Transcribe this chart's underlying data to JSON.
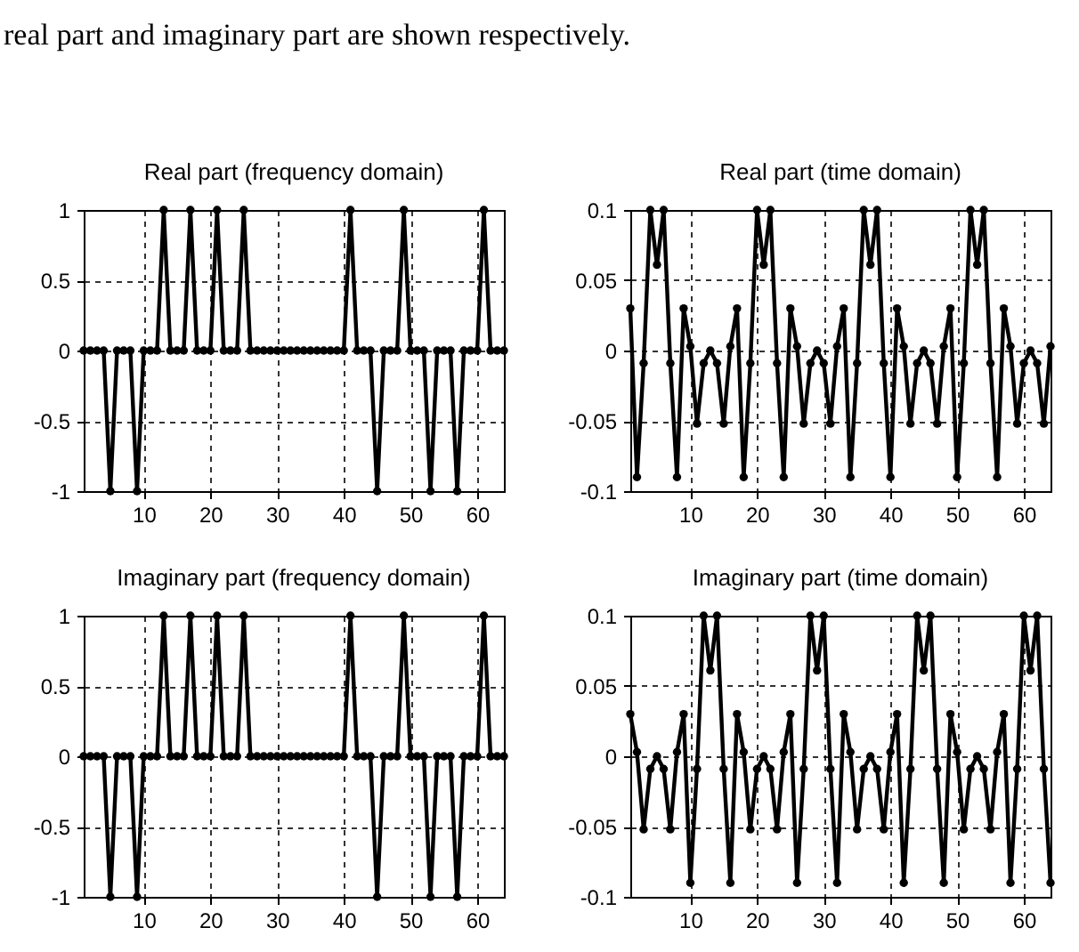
{
  "chart_data": [
    {
      "type": "line",
      "title": "Real part (frequency domain)",
      "annotations": [
        "real part and imaginary part are shown respectively."
      ],
      "x": [
        1,
        2,
        3,
        4,
        5,
        6,
        7,
        8,
        9,
        10,
        11,
        12,
        13,
        14,
        15,
        16,
        17,
        18,
        19,
        20,
        21,
        22,
        23,
        24,
        25,
        26,
        27,
        28,
        29,
        30,
        31,
        32,
        33,
        34,
        35,
        36,
        37,
        38,
        39,
        40,
        41,
        42,
        43,
        44,
        45,
        46,
        47,
        48,
        49,
        50,
        51,
        52,
        53,
        54,
        55,
        56,
        57,
        58,
        59,
        60,
        61,
        62,
        63,
        64
      ],
      "xlim": [
        1,
        64
      ],
      "xticks": [
        10,
        20,
        30,
        40,
        50,
        60
      ],
      "ylim": [
        -1,
        1
      ],
      "yticks": [
        -1,
        -0.5,
        0,
        0.5,
        1
      ],
      "grid": true,
      "marker": "circle",
      "line_style": "solid",
      "series": [
        {
          "color": "#000000",
          "values": [
            0,
            0,
            0,
            0,
            -1,
            0,
            0,
            0,
            -1,
            0,
            0,
            0,
            1,
            0,
            0,
            0,
            1,
            0,
            0,
            0,
            1,
            0,
            0,
            0,
            1,
            0,
            0,
            0,
            0,
            0,
            0,
            0,
            0,
            0,
            0,
            0,
            0,
            0,
            0,
            0,
            1,
            0,
            0,
            0,
            -1,
            0,
            0,
            0,
            1,
            0,
            0,
            0,
            -1,
            0,
            0,
            0,
            -1,
            0,
            0,
            0,
            1,
            0,
            0,
            0
          ]
        }
      ]
    },
    {
      "type": "line",
      "title": "Real part (time domain)",
      "x": [
        1,
        2,
        3,
        4,
        5,
        6,
        7,
        8,
        9,
        10,
        11,
        12,
        13,
        14,
        15,
        16,
        17,
        18,
        19,
        20,
        21,
        22,
        23,
        24,
        25,
        26,
        27,
        28,
        29,
        30,
        31,
        32,
        33,
        34,
        35,
        36,
        37,
        38,
        39,
        40,
        41,
        42,
        43,
        44,
        45,
        46,
        47,
        48,
        49,
        50,
        51,
        52,
        53,
        54,
        55,
        56,
        57,
        58,
        59,
        60,
        61,
        62,
        63,
        64
      ],
      "xlim": [
        1,
        64
      ],
      "xticks": [
        10,
        20,
        30,
        40,
        50,
        60
      ],
      "ylim": [
        -0.1,
        0.1
      ],
      "yticks": [
        -0.1,
        -0.05,
        0,
        0.05,
        0.1
      ],
      "grid": true,
      "marker": "circle",
      "line_style": "solid",
      "series": [
        {
          "color": "#000000",
          "values": [
            0.03,
            -0.09,
            -0.009,
            0.1,
            0.061,
            0.1,
            -0.009,
            -0.09,
            0.03,
            0.003,
            -0.052,
            -0.009,
            0,
            -0.009,
            -0.052,
            0.003,
            0.03,
            -0.09,
            -0.009,
            0.1,
            0.061,
            0.1,
            -0.009,
            -0.09,
            0.03,
            0.003,
            -0.052,
            -0.009,
            0,
            -0.009,
            -0.052,
            0.003,
            0.03,
            -0.09,
            -0.009,
            0.1,
            0.061,
            0.1,
            -0.009,
            -0.09,
            0.03,
            0.003,
            -0.052,
            -0.009,
            0,
            -0.009,
            -0.052,
            0.003,
            0.03,
            -0.09,
            -0.009,
            0.1,
            0.061,
            0.1,
            -0.009,
            -0.09,
            0.03,
            0.003,
            -0.052,
            -0.009,
            0,
            -0.009,
            -0.052,
            0.003
          ]
        }
      ]
    },
    {
      "type": "line",
      "title": "Imaginary part (frequency domain)",
      "x": [
        1,
        2,
        3,
        4,
        5,
        6,
        7,
        8,
        9,
        10,
        11,
        12,
        13,
        14,
        15,
        16,
        17,
        18,
        19,
        20,
        21,
        22,
        23,
        24,
        25,
        26,
        27,
        28,
        29,
        30,
        31,
        32,
        33,
        34,
        35,
        36,
        37,
        38,
        39,
        40,
        41,
        42,
        43,
        44,
        45,
        46,
        47,
        48,
        49,
        50,
        51,
        52,
        53,
        54,
        55,
        56,
        57,
        58,
        59,
        60,
        61,
        62,
        63,
        64
      ],
      "xlim": [
        1,
        64
      ],
      "xticks": [
        10,
        20,
        30,
        40,
        50,
        60
      ],
      "ylim": [
        -1,
        1
      ],
      "yticks": [
        -1,
        -0.5,
        0,
        0.5,
        1
      ],
      "grid": true,
      "marker": "circle",
      "line_style": "solid",
      "series": [
        {
          "color": "#000000",
          "values": [
            0,
            0,
            0,
            0,
            -1,
            0,
            0,
            0,
            -1,
            0,
            0,
            0,
            1,
            0,
            0,
            0,
            1,
            0,
            0,
            0,
            1,
            0,
            0,
            0,
            1,
            0,
            0,
            0,
            0,
            0,
            0,
            0,
            0,
            0,
            0,
            0,
            0,
            0,
            0,
            0,
            1,
            0,
            0,
            0,
            -1,
            0,
            0,
            0,
            1,
            0,
            0,
            0,
            -1,
            0,
            0,
            0,
            -1,
            0,
            0,
            0,
            1,
            0,
            0,
            0
          ]
        }
      ]
    },
    {
      "type": "line",
      "title": "Imaginary part (time domain)",
      "x": [
        1,
        2,
        3,
        4,
        5,
        6,
        7,
        8,
        9,
        10,
        11,
        12,
        13,
        14,
        15,
        16,
        17,
        18,
        19,
        20,
        21,
        22,
        23,
        24,
        25,
        26,
        27,
        28,
        29,
        30,
        31,
        32,
        33,
        34,
        35,
        36,
        37,
        38,
        39,
        40,
        41,
        42,
        43,
        44,
        45,
        46,
        47,
        48,
        49,
        50,
        51,
        52,
        53,
        54,
        55,
        56,
        57,
        58,
        59,
        60,
        61,
        62,
        63,
        64
      ],
      "xlim": [
        1,
        64
      ],
      "xticks": [
        10,
        20,
        30,
        40,
        50,
        60
      ],
      "ylim": [
        -0.1,
        0.1
      ],
      "yticks": [
        -0.1,
        -0.05,
        0,
        0.05,
        0.1
      ],
      "grid": true,
      "marker": "circle",
      "line_style": "solid",
      "series": [
        {
          "color": "#000000",
          "values": [
            0.03,
            0.003,
            -0.052,
            -0.009,
            0,
            -0.009,
            -0.052,
            0.003,
            0.03,
            -0.09,
            -0.009,
            0.1,
            0.061,
            0.1,
            -0.009,
            -0.09,
            0.03,
            0.003,
            -0.052,
            -0.009,
            0,
            -0.009,
            -0.052,
            0.003,
            0.03,
            -0.09,
            -0.009,
            0.1,
            0.061,
            0.1,
            -0.009,
            -0.09,
            0.03,
            0.003,
            -0.052,
            -0.009,
            0,
            -0.009,
            -0.052,
            0.003,
            0.03,
            -0.09,
            -0.009,
            0.1,
            0.061,
            0.1,
            -0.009,
            -0.09,
            0.03,
            0.003,
            -0.052,
            -0.009,
            0,
            -0.009,
            -0.052,
            0.003,
            0.03,
            -0.09,
            -0.009,
            0.1,
            0.061,
            0.1,
            -0.009,
            -0.09
          ]
        }
      ]
    }
  ]
}
